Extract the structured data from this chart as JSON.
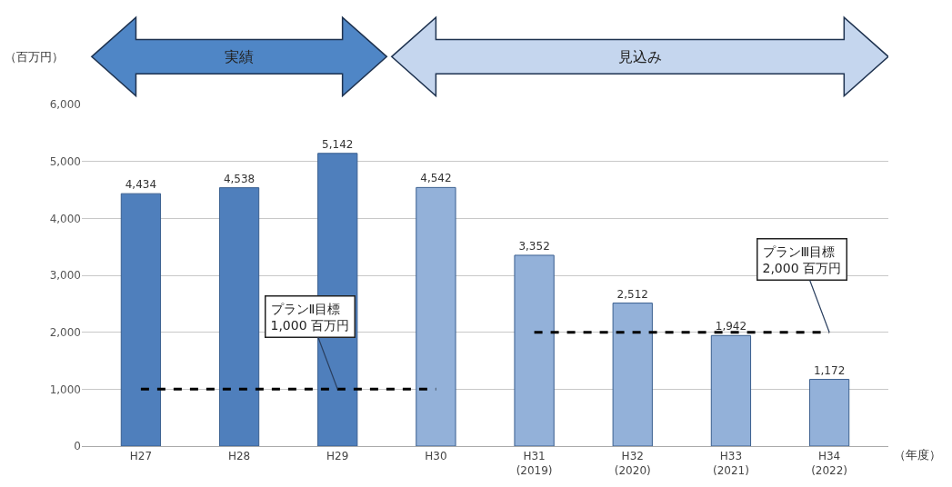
{
  "chart_data": {
    "type": "bar",
    "categories": [
      "H27",
      "H28",
      "H29",
      "H30",
      "H31\n(2019)",
      "H32\n(2020)",
      "H33\n(2021)",
      "H34\n(2022)"
    ],
    "series": [
      {
        "values": [
          4434,
          4538,
          5142,
          4542,
          3352,
          2512,
          1942,
          1172
        ],
        "value_labels": [
          "4,434",
          "4,538",
          "5,142",
          "4,542",
          "3,352",
          "2,512",
          "1,942",
          "1,172"
        ],
        "colors": [
          "#4f7fbc",
          "#4f7fbc",
          "#4f7fbc",
          "#93b1d9",
          "#93b1d9",
          "#93b1d9",
          "#93b1d9",
          "#93b1d9"
        ]
      },
      {
        "type": "line",
        "color": "#000000",
        "line_style": "dashed",
        "marker": "none",
        "values": [
          1000,
          1000,
          1000,
          1000,
          null,
          null,
          null,
          null
        ]
      },
      {
        "type": "line",
        "color": "#000000",
        "line_style": "dashed",
        "marker": "none",
        "values": [
          null,
          null,
          null,
          null,
          2000,
          2000,
          2000,
          2000
        ]
      }
    ],
    "ylabel": "（百万円）",
    "xlabel": "（年度）",
    "ylim": [
      0,
      6000
    ],
    "yticks": [
      0,
      {
        "value": 1000,
        "label": "1,000"
      },
      {
        "value": 2000,
        "label": "2,000"
      },
      {
        "value": 3000,
        "label": "3,000"
      },
      {
        "value": 4000,
        "label": "4,000"
      },
      {
        "value": 5000,
        "label": "5,000"
      },
      {
        "value": 6000,
        "label": "6,000"
      }
    ],
    "grid": "y",
    "annotations": [
      "実績",
      "見込み",
      {
        "text": "プランⅡ目標\n1,000 百万円",
        "x": "H29",
        "y": 1000
      },
      {
        "text": "プランⅢ目標\n2,000 百万円",
        "x": "H34\n(2022)",
        "y": 2000
      }
    ]
  }
}
